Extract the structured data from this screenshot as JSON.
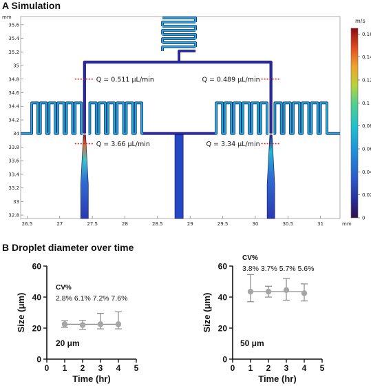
{
  "panel_a": {
    "title": "A  Simulation",
    "y_unit": "mm",
    "x_unit": "mm",
    "colorbar_unit": "m/s",
    "colors": {
      "low": "#2a2aa8",
      "mid": "#19b0d4",
      "high": "#b0121a",
      "frame": "#888888",
      "marker": "#c81e1e"
    },
    "flow_labels": [
      {
        "text": "Q = 0.511 μL/min"
      },
      {
        "text": "Q = 0.489 μL/min"
      },
      {
        "text": "Q = 3.66 μL/min"
      },
      {
        "text": "Q = 3.34 μL/min"
      }
    ]
  },
  "panel_b": {
    "title": "B  Droplet diameter over time",
    "colors": {
      "marker": "#a6a6a6",
      "line": "#888888"
    }
  },
  "chart_data": [
    {
      "type": "heatmap",
      "title": "A  Simulation",
      "xlabel": "mm",
      "ylabel": "mm",
      "xlim": [
        26.4,
        31.3
      ],
      "ylim": [
        32.75,
        35.72
      ],
      "x_ticks": [
        26.5,
        27,
        27.5,
        28,
        28.5,
        29,
        29.5,
        30,
        30.5,
        31
      ],
      "y_ticks": [
        32.8,
        33,
        33.2,
        33.4,
        33.6,
        33.8,
        34,
        34.2,
        34.4,
        34.6,
        34.8,
        35,
        35.2,
        35.4,
        35.6
      ],
      "colorbar": {
        "label": "m/s",
        "range": [
          0,
          0.165
        ],
        "ticks": [
          0,
          0.02,
          0.04,
          0.06,
          0.08,
          0.1,
          0.12,
          0.14,
          0.16
        ]
      },
      "annotations": [
        "Q = 0.511 μL/min",
        "Q = 0.489 μL/min",
        "Q = 3.66 μL/min",
        "Q = 3.34 μL/min"
      ]
    },
    {
      "type": "scatter",
      "xlabel": "Time (hr)",
      "ylabel": "Size (μm)",
      "xlim": [
        0,
        5
      ],
      "ylim": [
        0,
        60
      ],
      "x_ticks": [
        0,
        1,
        2,
        3,
        4,
        5
      ],
      "y_ticks": [
        0,
        20,
        40,
        60
      ],
      "label": "20 μm",
      "cv_header": "CV%",
      "cv": [
        "2.8%",
        "6.1%",
        "7.2%",
        "7.6%"
      ],
      "mean_line": 22.5,
      "series": [
        {
          "x": [
            1,
            2,
            3,
            4
          ],
          "values": [
            22.5,
            22,
            22.5,
            22.5
          ],
          "err_low": [
            20.5,
            19.2,
            19.5,
            19.5
          ],
          "err_high": [
            24.7,
            25,
            29.5,
            30.5
          ]
        }
      ]
    },
    {
      "type": "scatter",
      "xlabel": "Time (hr)",
      "ylabel": "Size (μm)",
      "xlim": [
        0,
        5
      ],
      "ylim": [
        0,
        60
      ],
      "x_ticks": [
        0,
        1,
        2,
        3,
        4,
        5
      ],
      "y_ticks": [
        0,
        20,
        40,
        60
      ],
      "label": "50 μm",
      "cv_header": "CV%",
      "cv": [
        "3.8%",
        "3.7%",
        "5.7%",
        "5.6%"
      ],
      "mean_line": 43.5,
      "series": [
        {
          "x": [
            1,
            2,
            3,
            4
          ],
          "values": [
            43.5,
            43.5,
            44.5,
            42.5
          ],
          "err_low": [
            37,
            40,
            38,
            37.5
          ],
          "err_high": [
            54.5,
            47,
            52,
            48.5
          ]
        }
      ]
    }
  ]
}
